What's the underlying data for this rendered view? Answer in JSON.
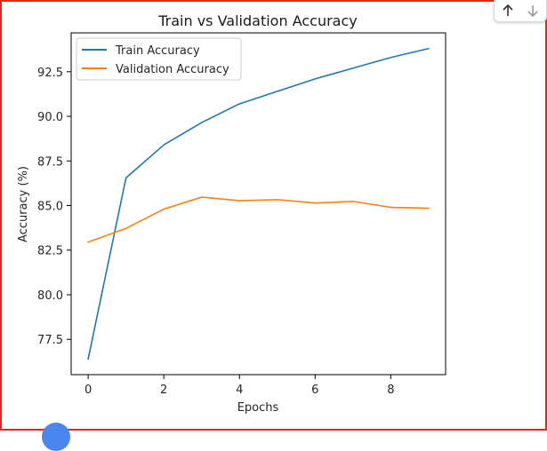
{
  "chart_data": {
    "type": "line",
    "title": "Train vs Validation Accuracy",
    "xlabel": "Epochs",
    "ylabel": "Accuracy (%)",
    "x": [
      0,
      1,
      2,
      3,
      4,
      5,
      6,
      7,
      8,
      9
    ],
    "series": [
      {
        "name": "Train Accuracy",
        "color": "#1f77b4",
        "values": [
          76.4,
          86.55,
          88.4,
          89.65,
          90.7,
          91.4,
          92.1,
          92.7,
          93.3,
          93.8
        ]
      },
      {
        "name": "Validation Accuracy",
        "color": "#ff7f0e",
        "values": [
          82.95,
          83.72,
          84.8,
          85.47,
          85.27,
          85.33,
          85.14,
          85.23,
          84.9,
          84.85
        ]
      }
    ],
    "xlim": [
      -0.45,
      9.45
    ],
    "ylim": [
      75.52,
      94.68
    ],
    "xticks": [
      0,
      2,
      4,
      6,
      8
    ],
    "yticks": [
      77.5,
      80.0,
      82.5,
      85.0,
      87.5,
      90.0,
      92.5
    ],
    "ytick_labels": [
      "77.5",
      "80.0",
      "82.5",
      "85.0",
      "87.5",
      "90.0",
      "92.5"
    ],
    "xtick_labels": [
      "0",
      "2",
      "4",
      "6",
      "8"
    ],
    "grid": false,
    "legend": "upper-left"
  },
  "toolbar": {
    "up_icon": "arrow-up-icon",
    "down_icon": "arrow-down-icon"
  }
}
